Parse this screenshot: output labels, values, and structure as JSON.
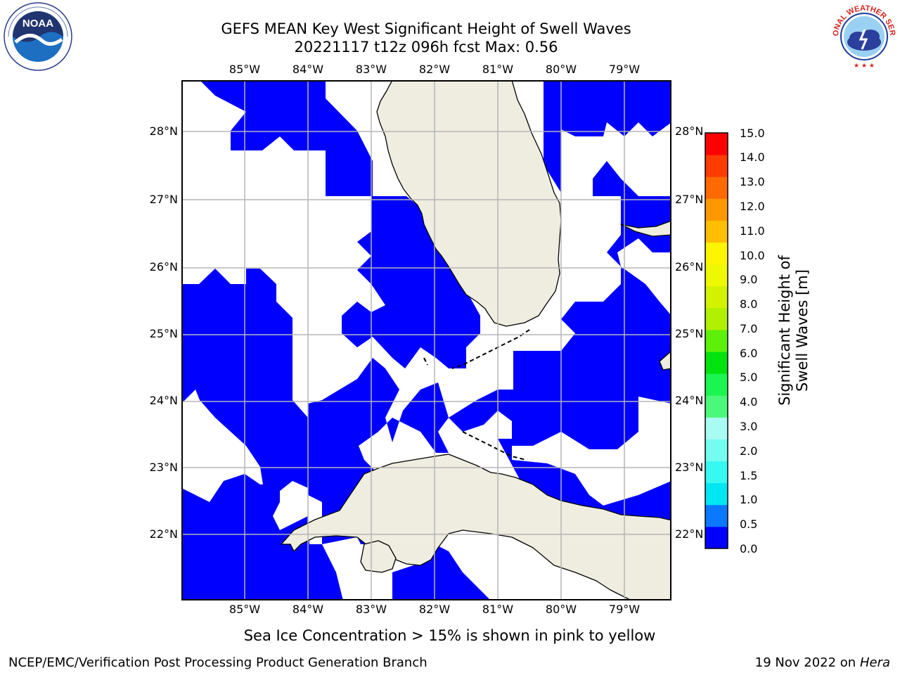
{
  "title_line1": "GEFS MEAN Key West Significant Height of Swell Waves",
  "title_line2": "20221117 t12z 096h fcst   Max: 0.56",
  "lon_ticks": [
    "85°W",
    "84°W",
    "83°W",
    "82°W",
    "81°W",
    "80°W",
    "79°W"
  ],
  "lat_ticks": [
    "28°N",
    "27°N",
    "26°N",
    "25°N",
    "24°N",
    "23°N",
    "22°N"
  ],
  "colorbar": {
    "label": "Significant Height of Swell Waves [m]",
    "ticks": [
      "15.0",
      "14.0",
      "13.0",
      "12.0",
      "11.0",
      "10.0",
      "9.0",
      "8.0",
      "7.0",
      "6.0",
      "5.0",
      "4.0",
      "3.0",
      "2.0",
      "1.5",
      "1.0",
      "0.5",
      "0.0"
    ],
    "bins": [
      {
        "from": 0.0,
        "to": 0.5,
        "color": "#0000ff"
      },
      {
        "from": 0.5,
        "to": 1.0,
        "color": "#0a78ff"
      },
      {
        "from": 1.0,
        "to": 1.5,
        "color": "#00e6f2"
      },
      {
        "from": 1.5,
        "to": 2.0,
        "color": "#38f8f2"
      },
      {
        "from": 2.0,
        "to": 2.5,
        "color": "#75fcf0"
      },
      {
        "from": 2.5,
        "to": 3.0,
        "color": "#a8fcf2"
      },
      {
        "from": 3.0,
        "to": 3.5,
        "color": "#4cf87a"
      },
      {
        "from": 3.5,
        "to": 4.0,
        "color": "#1cf550"
      },
      {
        "from": 4.0,
        "to": 5.0,
        "color": "#00e30f"
      },
      {
        "from": 5.0,
        "to": 6.0,
        "color": "#5cf00a"
      },
      {
        "from": 6.0,
        "to": 7.0,
        "color": "#b0f000"
      },
      {
        "from": 7.0,
        "to": 8.0,
        "color": "#d2f200"
      },
      {
        "from": 8.0,
        "to": 9.0,
        "color": "#eef800"
      },
      {
        "from": 9.0,
        "to": 10.0,
        "color": "#fff500"
      },
      {
        "from": 10.0,
        "to": 11.0,
        "color": "#ffbf00"
      },
      {
        "from": 11.0,
        "to": 12.0,
        "color": "#ff9800"
      },
      {
        "from": 12.0,
        "to": 13.0,
        "color": "#ff6a00"
      },
      {
        "from": 13.0,
        "to": 14.0,
        "color": "#ff3c00"
      },
      {
        "from": 14.0,
        "to": 15.0,
        "color": "#ff0000"
      }
    ]
  },
  "caption": "Sea Ice Concentration > 15% is shown in pink to yellow",
  "footer_left": "NCEP/EMC/Verification Post Processing Product Generation Branch",
  "footer_right_date": "19 Nov 2022 on",
  "footer_right_host": "Hera",
  "colors": {
    "land": "#eeeddf",
    "ocean_swell": "#0000ff",
    "no_data": "#ffffff",
    "grid": "#b5b5b5",
    "coast": "#000000"
  },
  "logos": {
    "left": {
      "name": "noaa-logo",
      "text": "NOAA"
    },
    "right": {
      "name": "nws-logo",
      "text": "NATIONAL WEATHER SERVICE"
    }
  }
}
